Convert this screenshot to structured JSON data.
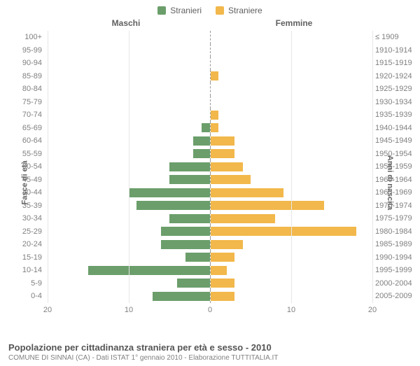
{
  "chart": {
    "type": "population-pyramid",
    "legend": [
      {
        "label": "Stranieri",
        "color": "#6b9e6b"
      },
      {
        "label": "Straniere",
        "color": "#f2b84b"
      }
    ],
    "column_titles": {
      "left": "Maschi",
      "right": "Femmine"
    },
    "y_axis_left_title": "Fasce di età",
    "y_axis_right_title": "Anni di nascita",
    "x_axis": {
      "min": -20,
      "max": 20,
      "ticks": [
        -20,
        -10,
        0,
        10,
        20
      ],
      "tick_labels": [
        "20",
        "10",
        "0",
        "10",
        "20"
      ]
    },
    "bar_colors": {
      "male": "#6b9e6b",
      "female": "#f2b84b"
    },
    "background_color": "#ffffff",
    "grid_color": "#e6e6e6",
    "label_color": "#808080",
    "title_color": "#606060",
    "rows": [
      {
        "age": "100+",
        "birth": "≤ 1909",
        "male": 0,
        "female": 0
      },
      {
        "age": "95-99",
        "birth": "1910-1914",
        "male": 0,
        "female": 0
      },
      {
        "age": "90-94",
        "birth": "1915-1919",
        "male": 0,
        "female": 0
      },
      {
        "age": "85-89",
        "birth": "1920-1924",
        "male": 0,
        "female": 1
      },
      {
        "age": "80-84",
        "birth": "1925-1929",
        "male": 0,
        "female": 0
      },
      {
        "age": "75-79",
        "birth": "1930-1934",
        "male": 0,
        "female": 0
      },
      {
        "age": "70-74",
        "birth": "1935-1939",
        "male": 0,
        "female": 1
      },
      {
        "age": "65-69",
        "birth": "1940-1944",
        "male": 1,
        "female": 1
      },
      {
        "age": "60-64",
        "birth": "1945-1949",
        "male": 2,
        "female": 3
      },
      {
        "age": "55-59",
        "birth": "1950-1954",
        "male": 2,
        "female": 3
      },
      {
        "age": "50-54",
        "birth": "1955-1959",
        "male": 5,
        "female": 4
      },
      {
        "age": "45-49",
        "birth": "1960-1964",
        "male": 5,
        "female": 5
      },
      {
        "age": "40-44",
        "birth": "1965-1969",
        "male": 10,
        "female": 9
      },
      {
        "age": "35-39",
        "birth": "1970-1974",
        "male": 9,
        "female": 14
      },
      {
        "age": "30-34",
        "birth": "1975-1979",
        "male": 5,
        "female": 8
      },
      {
        "age": "25-29",
        "birth": "1980-1984",
        "male": 6,
        "female": 18
      },
      {
        "age": "20-24",
        "birth": "1985-1989",
        "male": 6,
        "female": 4
      },
      {
        "age": "15-19",
        "birth": "1990-1994",
        "male": 3,
        "female": 3
      },
      {
        "age": "10-14",
        "birth": "1995-1999",
        "male": 15,
        "female": 2
      },
      {
        "age": "5-9",
        "birth": "2000-2004",
        "male": 4,
        "female": 3
      },
      {
        "age": "0-4",
        "birth": "2005-2009",
        "male": 7,
        "female": 3
      }
    ]
  },
  "footer": {
    "title": "Popolazione per cittadinanza straniera per età e sesso - 2010",
    "subtitle": "COMUNE DI SINNAI (CA) - Dati ISTAT 1° gennaio 2010 - Elaborazione TUTTITALIA.IT"
  }
}
